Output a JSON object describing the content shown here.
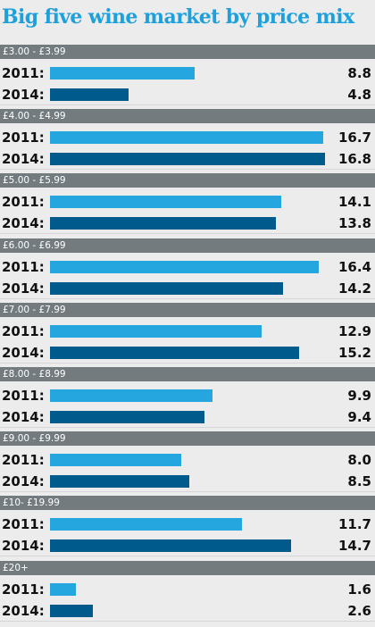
{
  "chart_data": {
    "type": "bar",
    "orientation": "horizontal",
    "title": "Big five wine market by price mix",
    "categories": [
      "£3.00 - £3.99",
      "£4.00 - £4.99",
      "£5.00 - £5.99",
      "£6.00 - £6.99",
      "£7.00 - £7.99",
      "£8.00 - £8.99",
      "£9.00 - £9.99",
      "£10- £19.99",
      "£20+"
    ],
    "series": [
      {
        "name": "2011:",
        "values": [
          8.8,
          16.7,
          14.1,
          16.4,
          12.9,
          9.9,
          8.0,
          11.7,
          1.6
        ]
      },
      {
        "name": "2014:",
        "values": [
          4.8,
          16.8,
          13.8,
          14.2,
          15.2,
          9.4,
          8.5,
          14.7,
          2.6
        ]
      }
    ],
    "xlim": [
      0,
      17
    ],
    "colors": {
      "2011": "#25a6de",
      "2014": "#005b8c",
      "title": "#1ea0dc",
      "header": "#737b7e"
    },
    "grid": false,
    "legend": "none"
  }
}
